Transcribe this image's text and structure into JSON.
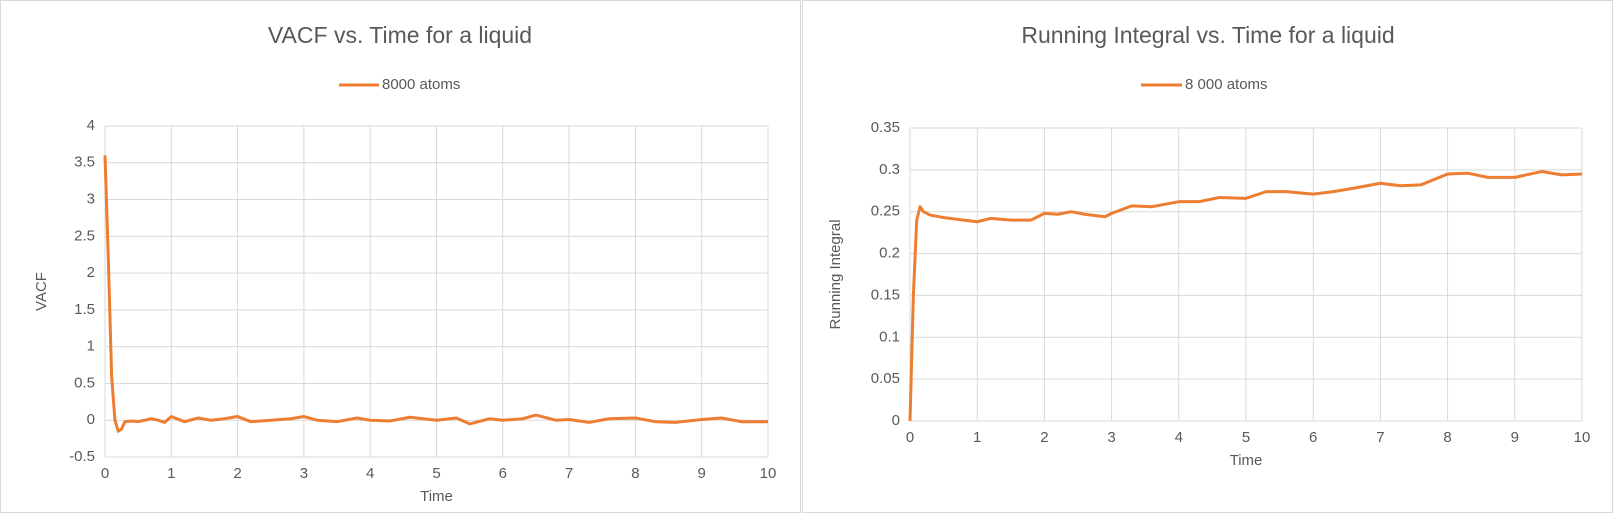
{
  "chart_data": [
    {
      "type": "line",
      "title": "VACF vs. Time for a liquid",
      "x_label": "Time",
      "y_label": "VACF",
      "x": [
        0,
        0.05,
        0.1,
        0.15,
        0.2,
        0.25,
        0.3,
        0.4,
        0.5,
        0.6,
        0.7,
        0.8,
        0.9,
        1.0,
        1.2,
        1.4,
        1.6,
        1.8,
        2.0,
        2.2,
        2.5,
        2.8,
        3.0,
        3.2,
        3.5,
        3.8,
        4.0,
        4.3,
        4.6,
        5.0,
        5.3,
        5.5,
        5.8,
        6.0,
        6.3,
        6.5,
        6.8,
        7.0,
        7.3,
        7.6,
        8.0,
        8.3,
        8.6,
        9.0,
        9.3,
        9.6,
        10.0
      ],
      "series": [
        {
          "name": "8000 atoms",
          "color": "#ed7d31",
          "values": [
            3.6,
            2.2,
            0.6,
            0.0,
            -0.15,
            -0.12,
            -0.02,
            -0.01,
            -0.02,
            0.0,
            0.02,
            0.0,
            -0.03,
            0.05,
            -0.02,
            0.03,
            0.0,
            0.02,
            0.05,
            -0.02,
            0.0,
            0.02,
            0.05,
            0.0,
            -0.02,
            0.03,
            0.0,
            -0.01,
            0.04,
            0.0,
            0.03,
            -0.05,
            0.02,
            0.0,
            0.02,
            0.07,
            0.0,
            0.01,
            -0.03,
            0.02,
            0.03,
            -0.02,
            -0.03,
            0.01,
            0.03,
            -0.02,
            -0.02
          ]
        }
      ],
      "xlim": [
        0,
        10
      ],
      "xticks": [
        0,
        1,
        2,
        3,
        4,
        5,
        6,
        7,
        8,
        9,
        10
      ],
      "ylim": [
        -0.5,
        4
      ],
      "yticks": [
        -0.5,
        0,
        0.5,
        1,
        1.5,
        2,
        2.5,
        3,
        3.5,
        4
      ],
      "grid": true,
      "legend": "top"
    },
    {
      "type": "line",
      "title": "Running Integral vs. Time for a liquid",
      "x_label": "Time",
      "y_label": "Running Integral",
      "x": [
        0,
        0.05,
        0.1,
        0.15,
        0.2,
        0.3,
        0.5,
        0.8,
        1.0,
        1.2,
        1.5,
        1.8,
        2.0,
        2.2,
        2.4,
        2.6,
        2.9,
        3.0,
        3.3,
        3.6,
        4.0,
        4.3,
        4.6,
        5.0,
        5.3,
        5.6,
        6.0,
        6.3,
        6.6,
        7.0,
        7.3,
        7.6,
        8.0,
        8.3,
        8.6,
        9.0,
        9.4,
        9.7,
        10.0
      ],
      "series": [
        {
          "name": "8 000 atoms",
          "color": "#ed7d31",
          "values": [
            0,
            0.15,
            0.24,
            0.256,
            0.25,
            0.246,
            0.243,
            0.24,
            0.238,
            0.242,
            0.24,
            0.24,
            0.248,
            0.247,
            0.25,
            0.247,
            0.244,
            0.248,
            0.257,
            0.256,
            0.262,
            0.262,
            0.267,
            0.266,
            0.274,
            0.274,
            0.271,
            0.274,
            0.278,
            0.284,
            0.281,
            0.282,
            0.295,
            0.296,
            0.291,
            0.291,
            0.298,
            0.294,
            0.295
          ]
        }
      ],
      "xlim": [
        0,
        10
      ],
      "xticks": [
        0,
        1,
        2,
        3,
        4,
        5,
        6,
        7,
        8,
        9,
        10
      ],
      "ylim": [
        0,
        0.35
      ],
      "yticks": [
        0,
        0.05,
        0.1,
        0.15,
        0.2,
        0.25,
        0.3,
        0.35
      ],
      "grid": true,
      "legend": "top"
    }
  ]
}
